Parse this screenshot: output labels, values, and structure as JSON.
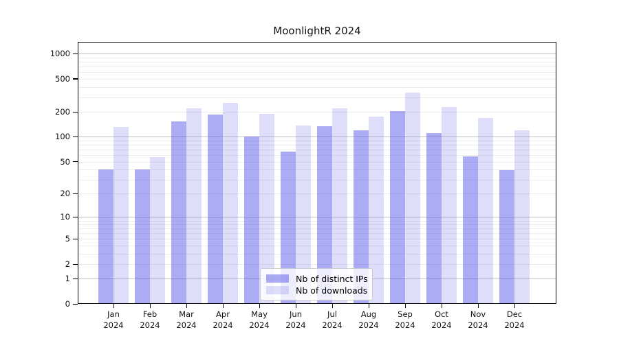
{
  "title": "MoonlightR 2024",
  "chart_data": {
    "type": "bar",
    "title": "MoonlightR 2024",
    "subtitle": "",
    "xlabel": "",
    "ylabel": "",
    "scale": "log1p",
    "grid": true,
    "legend_position": "bottom-center",
    "year_label": "2024",
    "categories": [
      "Jan",
      "Feb",
      "Mar",
      "Apr",
      "May",
      "Jun",
      "Jul",
      "Aug",
      "Sep",
      "Oct",
      "Nov",
      "Dec"
    ],
    "y_ticks": [
      1000,
      500,
      200,
      100,
      50,
      20,
      10,
      5,
      2,
      1,
      0
    ],
    "ylim": [
      0,
      1400
    ],
    "series": [
      {
        "name": "Nb of distinct IPs",
        "color": "rgba(70,70,230,0.45)",
        "values": [
          40,
          40,
          155,
          185,
          100,
          66,
          135,
          119,
          205,
          110,
          58,
          39
        ]
      },
      {
        "name": "Nb of downloads",
        "color": "rgba(70,70,230,0.18)",
        "values": [
          133,
          57,
          220,
          255,
          188,
          138,
          222,
          175,
          345,
          228,
          168,
          120
        ]
      }
    ],
    "colors": {
      "bar_base": "#4646E6",
      "grid_major": "#C2C2C2",
      "grid_minor": "#EDEDED",
      "axis": "#000000",
      "legend_border": "#CCCCCC",
      "background": "#FFFFFF"
    }
  }
}
